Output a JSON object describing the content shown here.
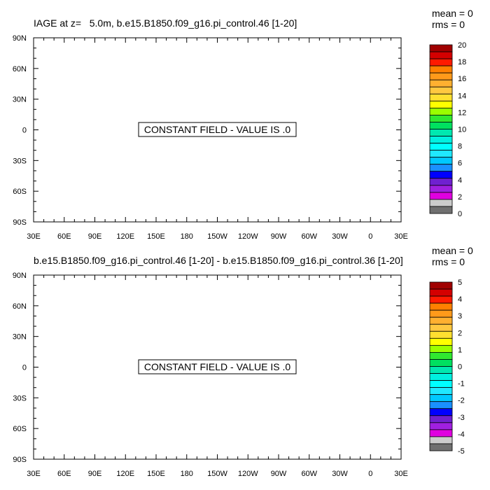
{
  "chart_data": [
    {
      "type": "heatmap",
      "title": "IAGE at z=   5.0m, b.e15.B1850.f09_g16.pi_control.46 [1-20]",
      "stats": {
        "mean": "mean = 0",
        "rms": "rms = 0"
      },
      "message": "CONSTANT FIELD - VALUE IS .0",
      "x_ticks": [
        "30E",
        "60E",
        "90E",
        "120E",
        "150E",
        "180",
        "150W",
        "120W",
        "90W",
        "60W",
        "30W",
        "0",
        "30E"
      ],
      "y_ticks": [
        "90N",
        "60N",
        "30N",
        "0",
        "30S",
        "60S",
        "90S"
      ],
      "colorbar": {
        "labels": [
          "20",
          "18",
          "16",
          "14",
          "12",
          "10",
          "8",
          "6",
          "4",
          "2",
          "0"
        ],
        "colors": [
          "#a00000",
          "#d40000",
          "#ff1a00",
          "#ff8000",
          "#ff9a1a",
          "#ffb030",
          "#ffc840",
          "#ffe030",
          "#ffff00",
          "#9aff00",
          "#30e830",
          "#00e060",
          "#00e8b0",
          "#00f0e0",
          "#00ffff",
          "#20e8ff",
          "#00c8ff",
          "#1a90ff",
          "#0000ff",
          "#7020d0",
          "#a020e0",
          "#e000e0",
          "#cccccc",
          "#707070"
        ]
      }
    },
    {
      "type": "heatmap",
      "title": "b.e15.B1850.f09_g16.pi_control.46 [1-20] - b.e15.B1850.f09_g16.pi_control.36 [1-20]",
      "stats": {
        "mean": "mean = 0",
        "rms": "rms = 0"
      },
      "message": "CONSTANT FIELD - VALUE IS .0",
      "x_ticks": [
        "30E",
        "60E",
        "90E",
        "120E",
        "150E",
        "180",
        "150W",
        "120W",
        "90W",
        "60W",
        "30W",
        "0",
        "30E"
      ],
      "y_ticks": [
        "90N",
        "60N",
        "30N",
        "0",
        "30S",
        "60S",
        "90S"
      ],
      "colorbar": {
        "labels": [
          "5",
          "4",
          "3",
          "2",
          "1",
          "0",
          "-1",
          "-2",
          "-3",
          "-4",
          "-5"
        ],
        "colors": [
          "#a00000",
          "#d40000",
          "#ff1a00",
          "#ff8000",
          "#ff9a1a",
          "#ffb030",
          "#ffc840",
          "#ffe030",
          "#ffff00",
          "#9aff00",
          "#30e830",
          "#00e060",
          "#00e8b0",
          "#00f0e0",
          "#00ffff",
          "#20e8ff",
          "#00c8ff",
          "#1a90ff",
          "#0000ff",
          "#7020d0",
          "#a020e0",
          "#e000e0",
          "#cccccc",
          "#707070"
        ]
      }
    }
  ]
}
